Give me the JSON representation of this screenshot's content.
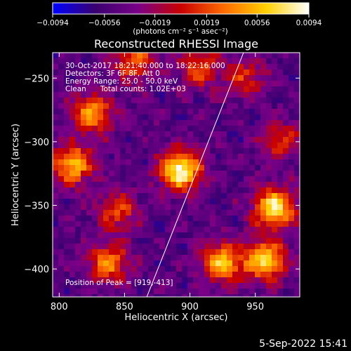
{
  "chart_data": {
    "type": "heatmap",
    "title": "Reconstructed RHESSI Image",
    "xlabel": "Heliocentric X (arcsec)",
    "ylabel": "Heliocentric Y (arcsec)",
    "xlim": [
      795,
      984
    ],
    "ylim": [
      -422,
      -230
    ],
    "xticks": [
      800,
      850,
      900,
      950
    ],
    "yticks": [
      -250,
      -300,
      -350,
      -400
    ],
    "xtick_labels": [
      "800",
      "850",
      "900",
      "950"
    ],
    "ytick_labels": [
      "−250",
      "−300",
      "−350",
      "−400"
    ],
    "colorbar": {
      "min": -0.0094,
      "max": 0.0094,
      "ticks": [
        -0.0094,
        -0.0056,
        -0.0019,
        0.0019,
        0.0056,
        0.0094
      ],
      "tick_labels": [
        "−0.0094",
        "−0.0056",
        "−0.0019",
        "0.0019",
        "0.0056",
        "0.0094"
      ],
      "units": "(photons cm⁻² s⁻¹ asec⁻²)",
      "colors": [
        "#0000ff",
        "#3a0070",
        "#7a0088",
        "#c80000",
        "#ff6a00",
        "#ffd000",
        "#ffffff"
      ]
    },
    "limb_line": {
      "x": [
        867,
        941
      ],
      "y": [
        -422,
        -230
      ],
      "color": "#ffffff"
    },
    "peak_position": [
      919,
      -413
    ],
    "annotations": [
      "30-Oct-2017 18:21:40.000 to 18:22:16.000",
      "Detectors: 3F 6F 8F, Att 0",
      "Energy Range: 25.0 - 50.0 keV",
      "Clean      Total counts: 1.02E+03",
      "Position of Peak = [919,-413]"
    ],
    "sources": [
      {
        "x": 893,
        "y": -322,
        "intensity": 1.0
      },
      {
        "x": 965,
        "y": -352,
        "intensity": 0.9
      },
      {
        "x": 958,
        "y": -393,
        "intensity": 0.8
      },
      {
        "x": 925,
        "y": -395,
        "intensity": 0.75
      },
      {
        "x": 810,
        "y": -318,
        "intensity": 0.75
      },
      {
        "x": 825,
        "y": -278,
        "intensity": 0.65
      },
      {
        "x": 858,
        "y": -236,
        "intensity": 0.55
      },
      {
        "x": 838,
        "y": -395,
        "intensity": 0.6
      },
      {
        "x": 907,
        "y": -242,
        "intensity": 0.45
      },
      {
        "x": 970,
        "y": -300,
        "intensity": 0.4
      },
      {
        "x": 845,
        "y": -355,
        "intensity": 0.45
      },
      {
        "x": 942,
        "y": -250,
        "intensity": 0.4
      }
    ]
  },
  "footer": {
    "date": "5-Sep-2022 15:41"
  }
}
